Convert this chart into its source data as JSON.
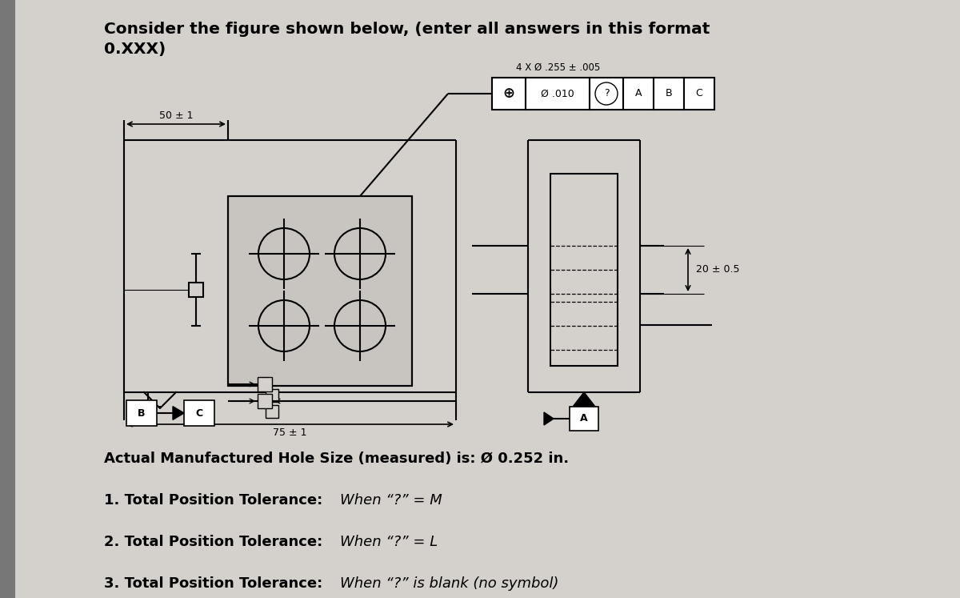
{
  "title_line1": "Consider the figure shown below, (enter all answers in this format",
  "title_line2": "0.XXX)",
  "bg_color": "#d4d0cb",
  "white": "#ffffff",
  "text_color": "#000000",
  "lc": "#000000",
  "callout_note": "4 X Ø .255 ± .005",
  "fcf_sym": "⊕",
  "fcf_tol": "Ø .010",
  "fcf_q": "?",
  "fcf_A": "A",
  "fcf_B": "B",
  "fcf_C": "C",
  "dim_50": "50 ± 1",
  "dim_75": "75 ± 1",
  "dim_20": "20 ± 0.5",
  "label_A": "A",
  "label_B": "B",
  "label_C": "C",
  "hole_size_text": "Actual Manufactured Hole Size (measured) is: Ø 0.252 in.",
  "q1_bold": "1. Total Position Tolerance: ",
  "q1_italic": "When “?” = M",
  "q2_bold": "2. Total Position Tolerance: ",
  "q2_italic": "When “?” = L",
  "q3_bold": "3. Total Position Tolerance: ",
  "q3_italic": "When “?” is blank (no symbol)",
  "left_bar_color": "#888888",
  "fig_w": 12.0,
  "fig_h": 7.47
}
